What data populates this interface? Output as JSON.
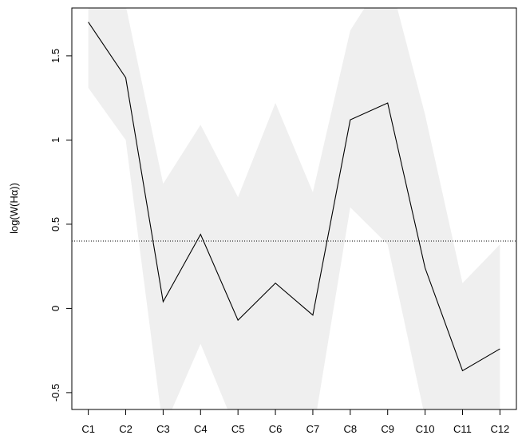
{
  "chart_data": {
    "type": "line",
    "ylabel": "log(W(Hα))",
    "categories": [
      "C1",
      "C2",
      "C3",
      "C4",
      "C5",
      "C6",
      "C7",
      "C8",
      "C9",
      "C10",
      "C11",
      "C12"
    ],
    "values": [
      1.7,
      1.37,
      0.04,
      0.44,
      -0.07,
      0.15,
      -0.04,
      1.12,
      1.22,
      0.24,
      -0.37,
      -0.24
    ],
    "band_upper": [
      2.1,
      1.8,
      0.74,
      1.09,
      0.66,
      1.22,
      0.69,
      1.65,
      2.0,
      1.15,
      0.15,
      0.38
    ],
    "band_lower": [
      1.31,
      1.0,
      -0.72,
      -0.21,
      -0.75,
      -0.75,
      -0.75,
      0.6,
      0.38,
      -0.65,
      -0.9,
      -0.9
    ],
    "color": "#000000",
    "band_color": "#efefef",
    "hline": 0.4,
    "ylim": [
      -0.6,
      1.784
    ],
    "yticks": [
      -0.5,
      0.0,
      0.5,
      1.0,
      1.5
    ]
  }
}
